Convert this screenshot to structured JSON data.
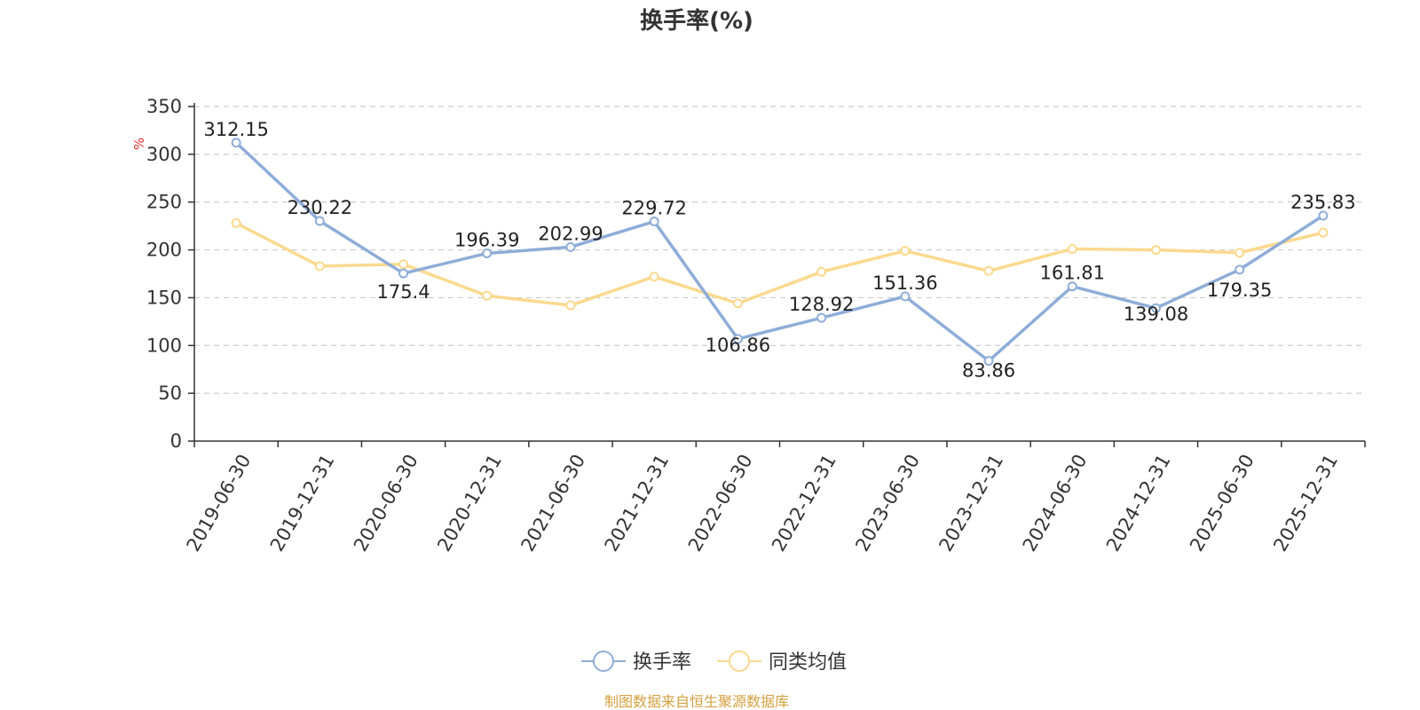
{
  "chart_data": {
    "type": "line",
    "title": "换手率(%)",
    "ylabel": "%",
    "ylim": [
      0,
      350
    ],
    "yticks": [
      0,
      50,
      100,
      150,
      200,
      250,
      300,
      350
    ],
    "grid": true,
    "legend_position": "bottom-center",
    "categories": [
      "2019-06-30",
      "2019-12-31",
      "2020-06-30",
      "2020-12-31",
      "2021-06-30",
      "2021-12-31",
      "2022-06-30",
      "2022-12-31",
      "2023-06-30",
      "2023-12-31",
      "2024-06-30",
      "2024-12-31",
      "2025-06-30",
      "2025-12-31"
    ],
    "series": [
      {
        "name": "换手率",
        "color": "#8eadd8",
        "values": [
          312.15,
          230.22,
          175.4,
          196.39,
          202.99,
          229.72,
          106.86,
          128.92,
          151.36,
          83.86,
          161.81,
          139.08,
          179.35,
          235.83
        ],
        "labels": [
          "312.15",
          "230.22",
          "175.4",
          "196.39",
          "202.99",
          "229.72",
          "106.86",
          "128.92",
          "151.36",
          "83.86",
          "161.81",
          "139.08",
          "179.35",
          "235.83"
        ]
      },
      {
        "name": "同类均值",
        "color": "#fbd98e",
        "values": [
          228,
          183,
          185,
          152,
          142,
          172,
          144,
          177,
          199,
          178,
          201,
          200,
          197,
          218
        ]
      }
    ]
  },
  "source_text": "制图数据来自恒生聚源数据库",
  "colors": {
    "axis": "#333333",
    "grid": "#cccccc",
    "unit": "#e03030",
    "source": "#d4a040"
  }
}
